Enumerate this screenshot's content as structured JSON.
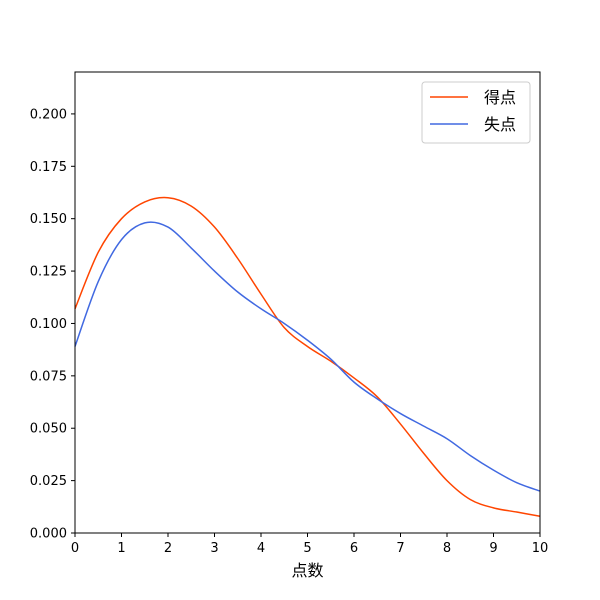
{
  "chart_data": {
    "type": "line",
    "xlabel": "点数",
    "ylabel": "",
    "xlim": [
      0,
      10
    ],
    "ylim": [
      0,
      0.22
    ],
    "xticks": [
      0,
      1,
      2,
      3,
      4,
      5,
      6,
      7,
      8,
      9,
      10
    ],
    "yticks": [
      0.0,
      0.025,
      0.05,
      0.075,
      0.1,
      0.125,
      0.15,
      0.175,
      0.2
    ],
    "xtick_labels": [
      "0",
      "1",
      "2",
      "3",
      "4",
      "5",
      "6",
      "7",
      "8",
      "9",
      "10"
    ],
    "ytick_labels": [
      "0.000",
      "0.025",
      "0.050",
      "0.075",
      "0.100",
      "0.125",
      "0.150",
      "0.175",
      "0.200"
    ],
    "grid": false,
    "legend_position": "top-right",
    "series": [
      {
        "name": "得点",
        "color": "#ff4500",
        "x": [
          0,
          0.5,
          1,
          1.5,
          2,
          2.5,
          3,
          3.5,
          4,
          4.5,
          5,
          5.5,
          6,
          6.5,
          7,
          7.5,
          8,
          8.5,
          9,
          9.5,
          10
        ],
        "y": [
          0.107,
          0.134,
          0.15,
          0.158,
          0.16,
          0.156,
          0.146,
          0.131,
          0.114,
          0.098,
          0.089,
          0.082,
          0.074,
          0.065,
          0.052,
          0.038,
          0.025,
          0.016,
          0.012,
          0.01,
          0.008
        ]
      },
      {
        "name": "失点",
        "color": "#4169e1",
        "x": [
          0,
          0.5,
          1,
          1.5,
          2,
          2.5,
          3,
          3.5,
          4,
          4.5,
          5,
          5.5,
          6,
          6.5,
          7,
          7.5,
          8,
          8.5,
          9,
          9.5,
          10
        ],
        "y": [
          0.089,
          0.12,
          0.14,
          0.148,
          0.146,
          0.136,
          0.125,
          0.115,
          0.107,
          0.1,
          0.092,
          0.083,
          0.072,
          0.064,
          0.057,
          0.051,
          0.045,
          0.037,
          0.03,
          0.024,
          0.02
        ]
      }
    ]
  }
}
